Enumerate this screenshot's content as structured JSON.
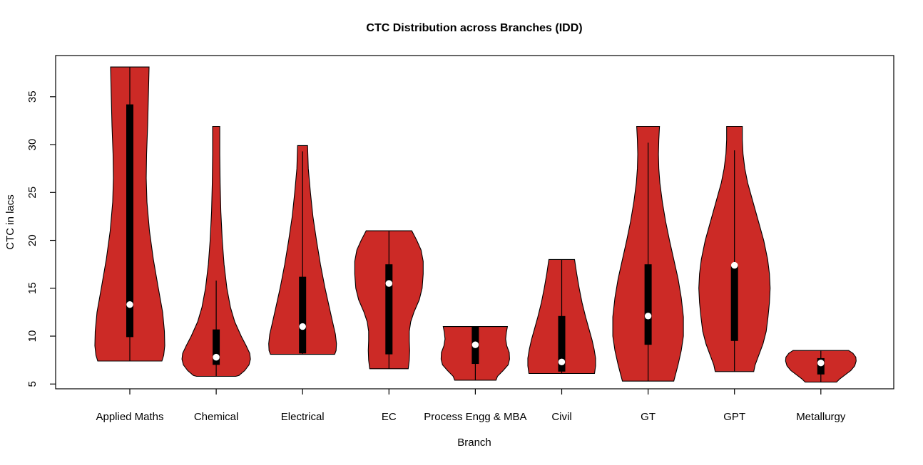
{
  "chart_data": {
    "type": "violin",
    "title": "CTC Distribution across Branches (IDD)",
    "xlabel": "Branch",
    "ylabel": "CTC in lacs",
    "ylim": [
      4.5,
      39.3
    ],
    "yticks": [
      5,
      10,
      15,
      20,
      25,
      30,
      35
    ],
    "grid": "off",
    "legend": "none",
    "categories": [
      "Applied Maths",
      "Chemical",
      "Electrical",
      "EC",
      "Process Engg & MBA",
      "Civil",
      "GT",
      "GPT",
      "Metallurgy"
    ],
    "colors": {
      "violin_fill": "#CC2A26",
      "violin_stroke": "#000000",
      "box": "#000000",
      "median_dot": "#FFFFFF",
      "axis": "#000000",
      "text": "#000000"
    },
    "series": [
      {
        "name": "Applied Maths",
        "min": 7.4,
        "max": 38.1,
        "q1": 9.9,
        "q3": 34.2,
        "median": 13.3,
        "whisker": [
          7.4,
          38.1
        ],
        "profile": [
          [
            38.1,
            0.54
          ],
          [
            35,
            0.52
          ],
          [
            32,
            0.5
          ],
          [
            29,
            0.47
          ],
          [
            26.5,
            0.46
          ],
          [
            24,
            0.48
          ],
          [
            21,
            0.55
          ],
          [
            18,
            0.66
          ],
          [
            15,
            0.8
          ],
          [
            12.5,
            0.92
          ],
          [
            10.5,
            0.97
          ],
          [
            9,
            0.98
          ],
          [
            8,
            0.95
          ],
          [
            7.4,
            0.9
          ]
        ]
      },
      {
        "name": "Chemical",
        "min": 5.8,
        "max": 31.9,
        "q1": 7.0,
        "q3": 10.7,
        "median": 7.8,
        "whisker": [
          5.8,
          15.8
        ],
        "profile": [
          [
            31.9,
            0.1
          ],
          [
            29,
            0.1
          ],
          [
            26,
            0.11
          ],
          [
            23,
            0.13
          ],
          [
            20,
            0.17
          ],
          [
            17.5,
            0.22
          ],
          [
            15,
            0.3
          ],
          [
            13,
            0.4
          ],
          [
            11.5,
            0.52
          ],
          [
            10,
            0.7
          ],
          [
            9,
            0.84
          ],
          [
            8.2,
            0.94
          ],
          [
            7.6,
            0.96
          ],
          [
            7,
            0.92
          ],
          [
            6.4,
            0.8
          ],
          [
            5.9,
            0.64
          ],
          [
            5.8,
            0.55
          ]
        ]
      },
      {
        "name": "Electrical",
        "min": 8.1,
        "max": 29.9,
        "q1": 8.2,
        "q3": 16.2,
        "median": 11.0,
        "whisker": [
          8.1,
          29.3
        ],
        "profile": [
          [
            29.9,
            0.14
          ],
          [
            27.5,
            0.16
          ],
          [
            25,
            0.22
          ],
          [
            22.5,
            0.29
          ],
          [
            20,
            0.39
          ],
          [
            17.5,
            0.5
          ],
          [
            15,
            0.63
          ],
          [
            13,
            0.75
          ],
          [
            11.5,
            0.84
          ],
          [
            10.2,
            0.92
          ],
          [
            9.2,
            0.95
          ],
          [
            8.5,
            0.94
          ],
          [
            8.1,
            0.9
          ]
        ]
      },
      {
        "name": "EC",
        "min": 6.6,
        "max": 21.0,
        "q1": 8.1,
        "q3": 17.5,
        "median": 15.5,
        "whisker": [
          6.6,
          21.0
        ],
        "profile": [
          [
            21,
            0.64
          ],
          [
            20,
            0.78
          ],
          [
            19,
            0.9
          ],
          [
            17.8,
            0.96
          ],
          [
            16.5,
            0.96
          ],
          [
            15,
            0.93
          ],
          [
            13.8,
            0.85
          ],
          [
            12.5,
            0.7
          ],
          [
            11.5,
            0.61
          ],
          [
            10.5,
            0.57
          ],
          [
            9.5,
            0.57
          ],
          [
            8.5,
            0.58
          ],
          [
            7.5,
            0.57
          ],
          [
            6.6,
            0.54
          ]
        ]
      },
      {
        "name": "Process Engg & MBA",
        "min": 5.4,
        "max": 11.0,
        "q1": 7.1,
        "q3": 11.0,
        "median": 9.1,
        "whisker": [
          5.4,
          11.0
        ],
        "profile": [
          [
            11,
            0.9
          ],
          [
            10.4,
            0.87
          ],
          [
            9.7,
            0.85
          ],
          [
            9,
            0.88
          ],
          [
            8.3,
            0.95
          ],
          [
            7.6,
            0.96
          ],
          [
            7,
            0.92
          ],
          [
            6.4,
            0.78
          ],
          [
            5.8,
            0.62
          ],
          [
            5.4,
            0.58
          ]
        ]
      },
      {
        "name": "Civil",
        "min": 6.1,
        "max": 18.0,
        "q1": 6.3,
        "q3": 12.1,
        "median": 7.3,
        "whisker": [
          6.1,
          18.0
        ],
        "profile": [
          [
            18,
            0.36
          ],
          [
            16.5,
            0.42
          ],
          [
            15,
            0.49
          ],
          [
            13.5,
            0.57
          ],
          [
            12,
            0.67
          ],
          [
            10.8,
            0.76
          ],
          [
            9.6,
            0.85
          ],
          [
            8.6,
            0.91
          ],
          [
            7.7,
            0.95
          ],
          [
            6.9,
            0.95
          ],
          [
            6.1,
            0.92
          ]
        ]
      },
      {
        "name": "GT",
        "min": 5.3,
        "max": 31.9,
        "q1": 9.1,
        "q3": 17.5,
        "median": 12.1,
        "whisker": [
          5.3,
          30.2
        ],
        "profile": [
          [
            31.9,
            0.32
          ],
          [
            30.5,
            0.3
          ],
          [
            29,
            0.29
          ],
          [
            27.5,
            0.3
          ],
          [
            26,
            0.33
          ],
          [
            24,
            0.4
          ],
          [
            22,
            0.49
          ],
          [
            20,
            0.6
          ],
          [
            18,
            0.72
          ],
          [
            16,
            0.84
          ],
          [
            14,
            0.93
          ],
          [
            12,
            0.99
          ],
          [
            10,
            0.99
          ],
          [
            8.5,
            0.93
          ],
          [
            7,
            0.84
          ],
          [
            6,
            0.77
          ],
          [
            5.3,
            0.72
          ]
        ]
      },
      {
        "name": "GPT",
        "min": 6.3,
        "max": 31.9,
        "q1": 9.5,
        "q3": 17.3,
        "median": 17.4,
        "whisker": [
          6.3,
          29.4
        ],
        "profile": [
          [
            31.9,
            0.22
          ],
          [
            30.5,
            0.22
          ],
          [
            29,
            0.24
          ],
          [
            27.5,
            0.29
          ],
          [
            26,
            0.37
          ],
          [
            24,
            0.52
          ],
          [
            22,
            0.67
          ],
          [
            20,
            0.82
          ],
          [
            18,
            0.93
          ],
          [
            16.5,
            0.98
          ],
          [
            15,
            1.0
          ],
          [
            13.5,
            0.98
          ],
          [
            12,
            0.94
          ],
          [
            10.5,
            0.89
          ],
          [
            9.2,
            0.8
          ],
          [
            8,
            0.68
          ],
          [
            7,
            0.58
          ],
          [
            6.3,
            0.54
          ]
        ]
      },
      {
        "name": "Metallurgy",
        "min": 5.2,
        "max": 8.5,
        "q1": 6.0,
        "q3": 7.7,
        "median": 7.2,
        "whisker": [
          5.2,
          8.5
        ],
        "profile": [
          [
            8.5,
            0.78
          ],
          [
            8.2,
            0.9
          ],
          [
            7.8,
            0.98
          ],
          [
            7.4,
            0.99
          ],
          [
            6.9,
            0.95
          ],
          [
            6.4,
            0.84
          ],
          [
            5.9,
            0.66
          ],
          [
            5.5,
            0.52
          ],
          [
            5.2,
            0.44
          ]
        ]
      }
    ]
  }
}
